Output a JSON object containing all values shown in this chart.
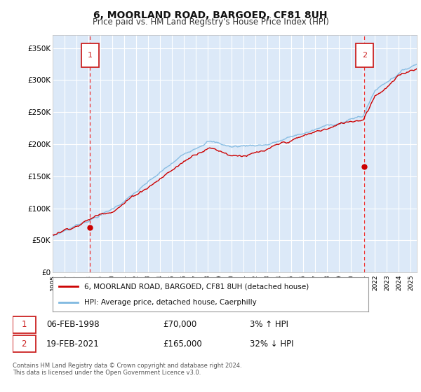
{
  "title": "6, MOORLAND ROAD, BARGOED, CF81 8UH",
  "subtitle": "Price paid vs. HM Land Registry's House Price Index (HPI)",
  "legend_line1": "6, MOORLAND ROAD, BARGOED, CF81 8UH (detached house)",
  "legend_line2": "HPI: Average price, detached house, Caerphilly",
  "footnote": "Contains HM Land Registry data © Crown copyright and database right 2024.\nThis data is licensed under the Open Government Licence v3.0.",
  "transaction1_date": "06-FEB-1998",
  "transaction1_price": "£70,000",
  "transaction1_hpi": "3% ↑ HPI",
  "transaction2_date": "19-FEB-2021",
  "transaction2_price": "£165,000",
  "transaction2_hpi": "32% ↓ HPI",
  "marker1_year": 1998.12,
  "marker1_value": 70000,
  "marker2_year": 2021.12,
  "marker2_value": 165000,
  "xlim": [
    1995,
    2025.5
  ],
  "ylim": [
    0,
    370000
  ],
  "yticks": [
    0,
    50000,
    100000,
    150000,
    200000,
    250000,
    300000,
    350000
  ],
  "ytick_labels": [
    "£0",
    "£50K",
    "£100K",
    "£150K",
    "£200K",
    "£250K",
    "£300K",
    "£350K"
  ],
  "plot_bg": "#dce9f8",
  "grid_color": "#ffffff",
  "line_color_red": "#cc0000",
  "line_color_blue": "#7fb8e0",
  "vline_color": "#ee3333",
  "marker_color_red": "#cc0000"
}
